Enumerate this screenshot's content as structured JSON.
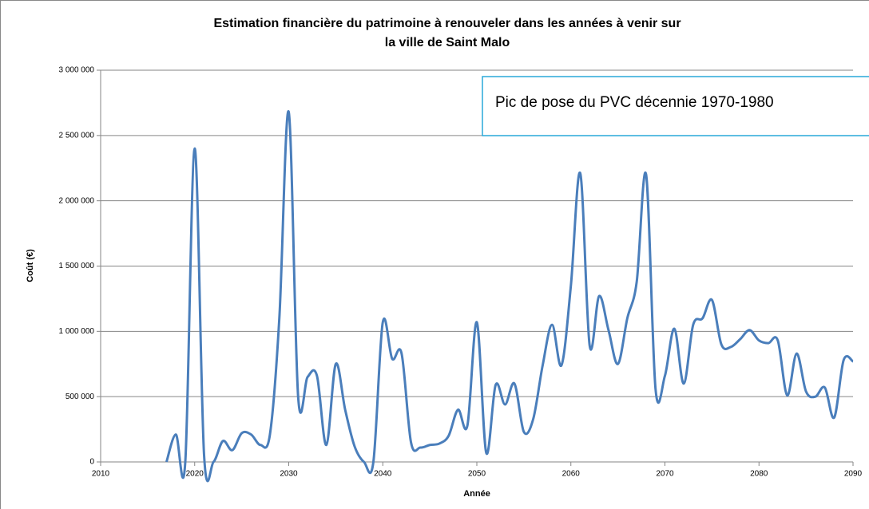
{
  "chart_data": {
    "type": "line",
    "title": "Estimation financière du patrimoine à renouveler dans les années à venir sur",
    "subtitle": "la ville de Saint Malo",
    "x_label": "Année",
    "y_label": "Coût (€)",
    "annotation": "Pic  de pose du PVC décennie 1970-1980",
    "x": [
      2017,
      2018,
      2019,
      2020,
      2021,
      2022,
      2023,
      2024,
      2025,
      2026,
      2027,
      2028,
      2029,
      2030,
      2031,
      2032,
      2033,
      2034,
      2035,
      2036,
      2037,
      2038,
      2039,
      2040,
      2041,
      2042,
      2043,
      2044,
      2045,
      2046,
      2047,
      2048,
      2049,
      2050,
      2051,
      2052,
      2053,
      2054,
      2055,
      2056,
      2057,
      2058,
      2059,
      2060,
      2061,
      2062,
      2063,
      2064,
      2065,
      2066,
      2067,
      2068,
      2069,
      2070,
      2071,
      2072,
      2073,
      2074,
      2075,
      2076,
      2077,
      2078,
      2079,
      2080,
      2081,
      2082,
      2083,
      2084,
      2085,
      2086,
      2087,
      2088,
      2089,
      2090
    ],
    "series": [
      {
        "name": "Coût",
        "color": "#4a7ebb",
        "values": [
          0,
          210000,
          0,
          2400000,
          50000,
          0,
          160000,
          90000,
          220000,
          210000,
          130000,
          210000,
          1100000,
          2680000,
          500000,
          650000,
          660000,
          130000,
          750000,
          400000,
          120000,
          0,
          0,
          1070000,
          790000,
          830000,
          150000,
          110000,
          130000,
          140000,
          200000,
          400000,
          280000,
          1070000,
          70000,
          590000,
          440000,
          600000,
          230000,
          330000,
          740000,
          1050000,
          740000,
          1350000,
          2210000,
          890000,
          1270000,
          1010000,
          750000,
          1100000,
          1380000,
          2200000,
          560000,
          660000,
          1020000,
          600000,
          1050000,
          1100000,
          1240000,
          900000,
          880000,
          940000,
          1010000,
          930000,
          910000,
          930000,
          510000,
          830000,
          540000,
          500000,
          570000,
          340000,
          780000,
          770000
        ]
      }
    ],
    "xlim": [
      2010,
      2090
    ],
    "xticks": [
      2010,
      2020,
      2030,
      2040,
      2050,
      2060,
      2070,
      2080,
      2090
    ],
    "ylim": [
      0,
      3000000
    ],
    "yticks": [
      0,
      {
        "value": 500000,
        "label": "500 000"
      },
      {
        "value": 1000000,
        "label": "1 000 000"
      },
      {
        "value": 1500000,
        "label": "1 500 000"
      },
      {
        "value": 2000000,
        "label": "2 000 000"
      },
      {
        "value": 2500000,
        "label": "2 500 000"
      },
      {
        "value": 3000000,
        "label": "3 000 000"
      }
    ],
    "grid": true
  }
}
